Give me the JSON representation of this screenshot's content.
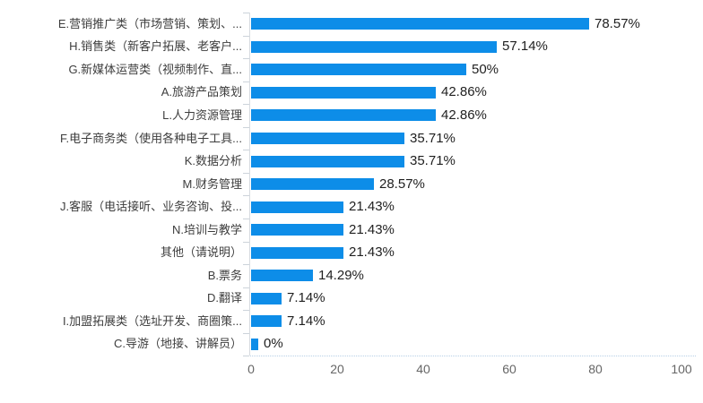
{
  "chart_data": {
    "type": "bar",
    "orientation": "horizontal",
    "title": "",
    "xlabel": "",
    "ylabel": "",
    "xlim": [
      0,
      100
    ],
    "x_ticks": [
      "0",
      "20",
      "40",
      "60",
      "80",
      "100"
    ],
    "grid": false,
    "legend": false,
    "categories": [
      "E.营销推广类（市场营销、策划、...",
      "H.销售类（新客户拓展、老客户...",
      "G.新媒体运营类（视频制作、直...",
      "A.旅游产品策划",
      "L.人力资源管理",
      "F.电子商务类（使用各种电子工具...",
      "K.数据分析",
      "M.财务管理",
      "J.客服（电话接听、业务咨询、投...",
      "N.培训与教学",
      "其他（请说明）",
      "B.票务",
      "D.翻译",
      "I.加盟拓展类（选址开发、商圈策...",
      "C.导游（地接、讲解员）"
    ],
    "values": [
      78.57,
      57.14,
      50,
      42.86,
      42.86,
      35.71,
      35.71,
      28.57,
      21.43,
      21.43,
      21.43,
      14.29,
      7.14,
      7.14,
      0
    ],
    "value_labels": [
      "78.57%",
      "57.14%",
      "50%",
      "42.86%",
      "42.86%",
      "35.71%",
      "35.71%",
      "28.57%",
      "21.43%",
      "21.43%",
      "21.43%",
      "14.29%",
      "7.14%",
      "7.14%",
      "0%"
    ]
  },
  "colors": {
    "bar": "#0d8de8",
    "category_text": "#3d3d3d",
    "value_text": "#1f1f1f",
    "tick_text": "#666666",
    "axis_line": "#d7dbe0",
    "tick_mark": "#ccd3da",
    "baseline": "#b7cfe7",
    "background": "#ffffff"
  }
}
